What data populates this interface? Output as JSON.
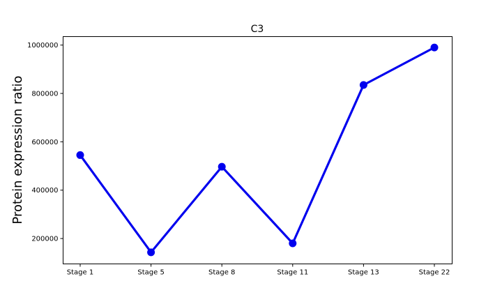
{
  "chart_data": {
    "type": "line",
    "title": "C3",
    "xlabel": "",
    "ylabel": "Protein expression ratio",
    "categories": [
      "Stage 1",
      "Stage 5",
      "Stage 8",
      "Stage 11",
      "Stage 13",
      "Stage 22"
    ],
    "series": [
      {
        "values": [
          545000,
          143000,
          497000,
          180000,
          835000,
          990000
        ],
        "color": "#0000ee"
      }
    ],
    "ylim": [
      95000,
      1035000
    ],
    "yticks": [
      200000,
      400000,
      600000,
      800000,
      1000000
    ],
    "ytick_labels": [
      "200000",
      "400000",
      "600000",
      "800000",
      "1000000"
    ],
    "grid": false,
    "legend": "none"
  }
}
